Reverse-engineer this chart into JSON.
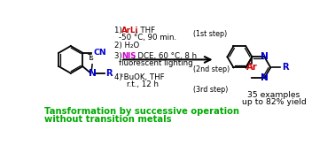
{
  "bg_color": "#ffffff",
  "title_line1": "Tansformation by successive operation",
  "title_line2": "without transition metals",
  "title_color": "#00aa00",
  "title_fontsize": 7.2,
  "step1_label": "(1st step)",
  "step2": "2) H₂O",
  "step3_line2": "fluorescent lighting",
  "step3_label": "(2nd step)",
  "step4_label": "(3rd step)",
  "result_line1": "35 examples",
  "result_line2": "up to 82% yield",
  "text_fontsize": 6.2,
  "small_fontsize": 5.8,
  "ArLi_color": "#cc0000",
  "NIS_color": "#cc00cc",
  "N_color": "#0000cc",
  "R_color": "#0000cc",
  "Ar_color": "#cc0000",
  "CN_color": "#0000cc"
}
